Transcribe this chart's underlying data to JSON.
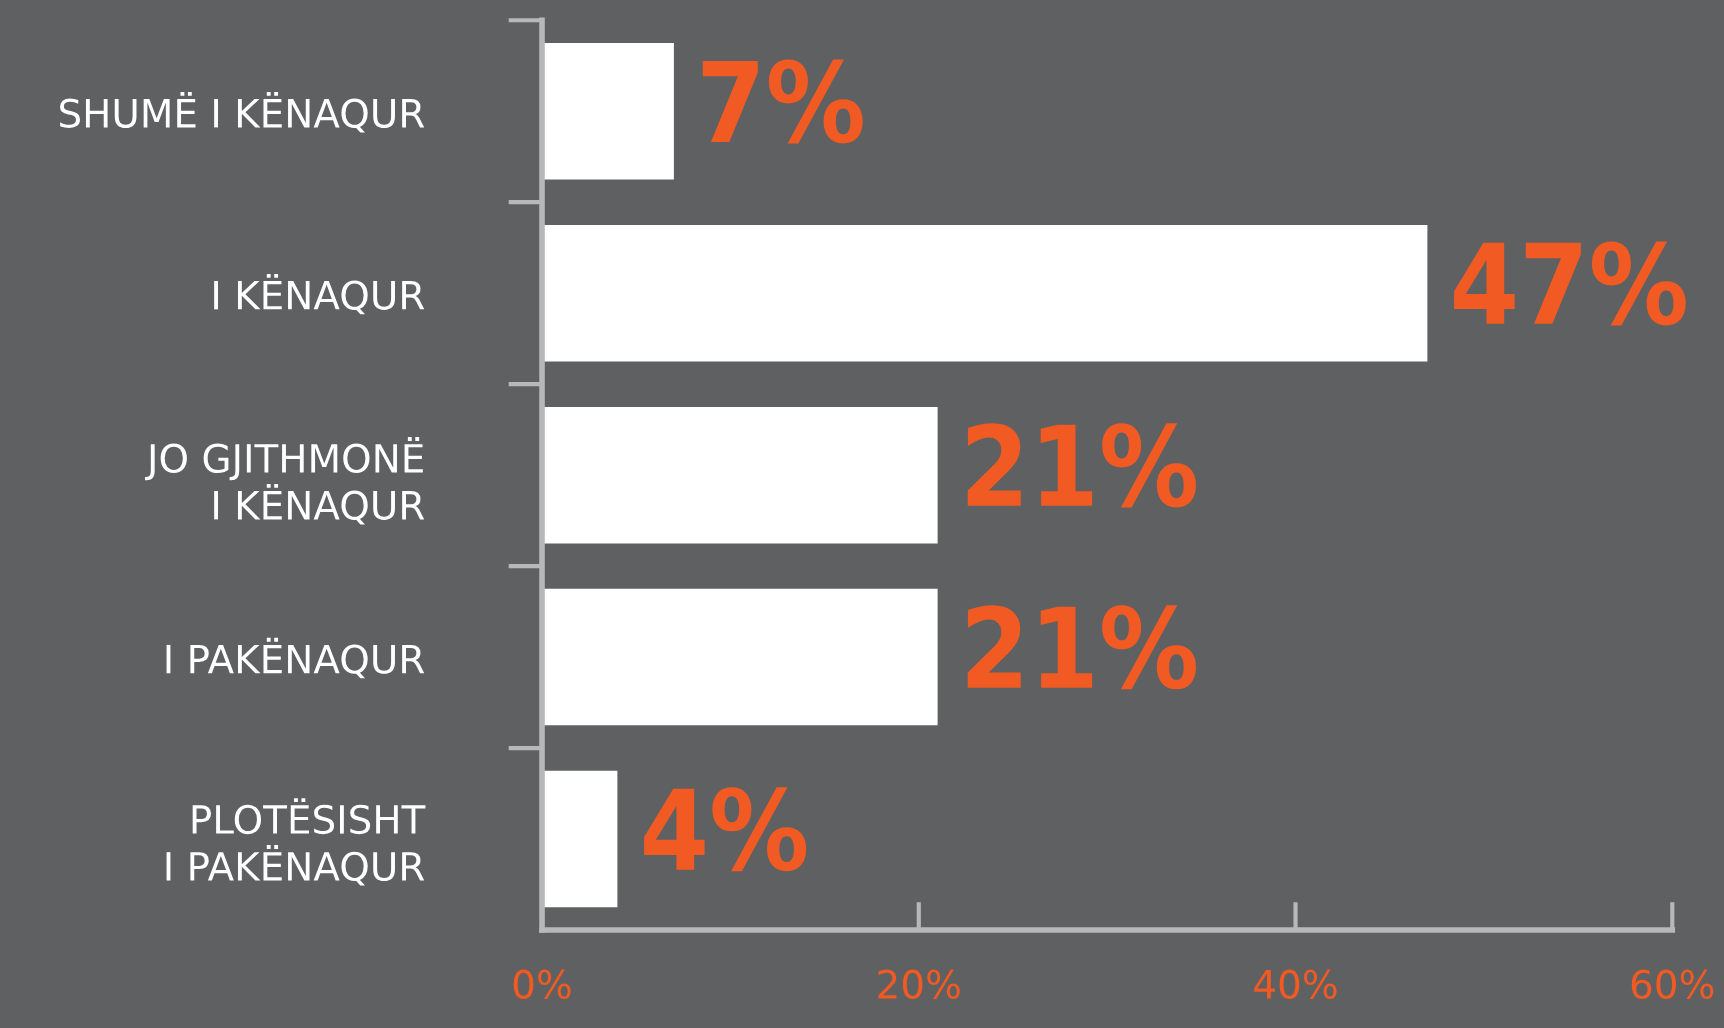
{
  "chart_data": {
    "type": "bar",
    "orientation": "horizontal",
    "categories": [
      "SHUMË I KËNAQUR",
      "I KËNAQUR",
      "JO GJITHMONË\nI KËNAQUR",
      "I PAKËNAQUR",
      "PLOTËSISHT\nI PAKËNAQUR"
    ],
    "values": [
      7,
      47,
      21,
      21,
      4
    ],
    "value_labels": [
      "7%",
      "47%",
      "21%",
      "21%",
      "4%"
    ],
    "color": "#ffffff",
    "xlim": [
      0,
      60
    ],
    "xticks": [
      {
        "value": 0,
        "label": "0%"
      },
      {
        "value": 20,
        "label": "20%"
      },
      {
        "value": 40,
        "label": "40%"
      },
      {
        "value": 60,
        "label": "60%"
      }
    ],
    "grid": false,
    "legend": false
  }
}
